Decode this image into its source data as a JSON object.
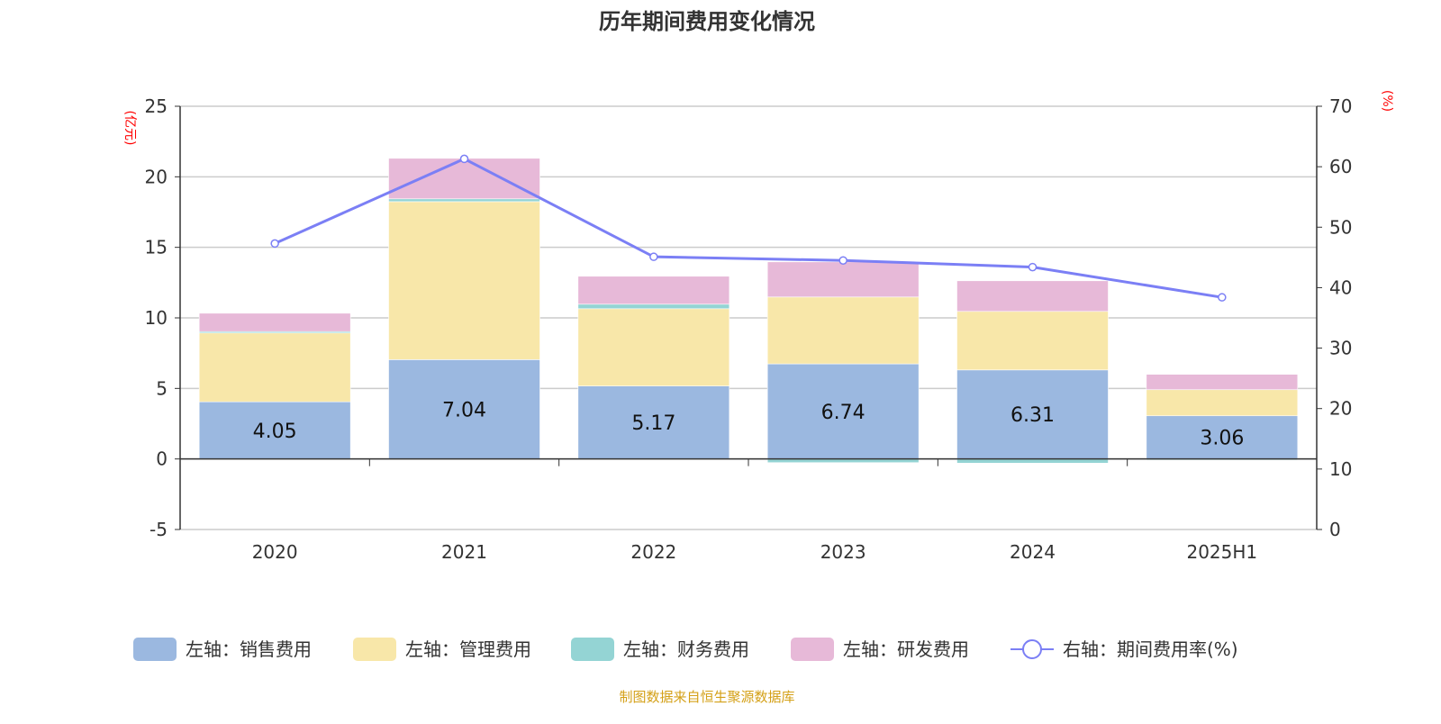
{
  "chart_data": {
    "type": "bar",
    "title": "历年期间费用变化情况",
    "categories": [
      "2020",
      "2021",
      "2022",
      "2023",
      "2024",
      "2025H1"
    ],
    "y_left": {
      "label": "(亿元)",
      "lim": [
        -5,
        25
      ],
      "ticks": [
        -5,
        0,
        5,
        10,
        15,
        20,
        25
      ]
    },
    "y_right": {
      "label": "(%)",
      "lim": [
        0,
        70
      ],
      "ticks": [
        0,
        10,
        20,
        30,
        40,
        50,
        60,
        70
      ]
    },
    "grid": true,
    "legend_position": "bottom",
    "series": [
      {
        "name": "左轴：销售费用",
        "type": "bar",
        "axis": "left",
        "color": "#9bb8e0",
        "values": [
          4.05,
          7.04,
          5.17,
          6.74,
          6.31,
          3.06
        ],
        "show_labels": true
      },
      {
        "name": "左轴：管理费用",
        "type": "bar",
        "axis": "left",
        "color": "#f8e7a9",
        "values": [
          4.88,
          11.2,
          5.48,
          4.74,
          4.15,
          1.85
        ]
      },
      {
        "name": "左轴：财务费用",
        "type": "bar",
        "axis": "left",
        "color": "#94d4d4",
        "values": [
          0.1,
          0.2,
          0.32,
          -0.26,
          -0.3,
          -0.08
        ]
      },
      {
        "name": "左轴：研发费用",
        "type": "bar",
        "axis": "left",
        "color": "#e7b9d8",
        "values": [
          1.3,
          2.87,
          1.98,
          2.49,
          2.17,
          1.09
        ]
      },
      {
        "name": "右轴：期间费用率(%)",
        "type": "line",
        "axis": "right",
        "color": "#7b7ff5",
        "values": [
          47.3,
          61.3,
          45.1,
          44.5,
          43.4,
          38.4
        ]
      }
    ],
    "source": "制图数据来自恒生聚源数据库"
  }
}
